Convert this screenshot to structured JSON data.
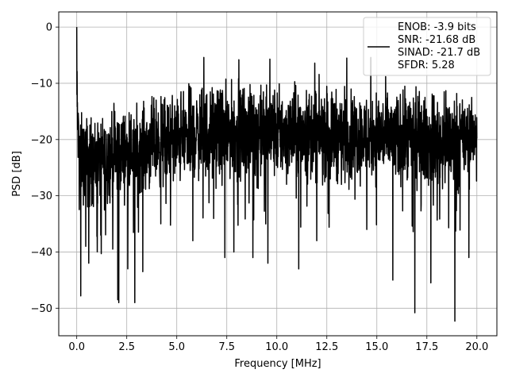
{
  "chart_data": {
    "type": "line",
    "xlabel": "Frequency [MHz]",
    "ylabel": "PSD [dB]",
    "xlim": [
      -0.9,
      21.0
    ],
    "ylim": [
      -54.9,
      2.7
    ],
    "xticks": [
      0.0,
      2.5,
      5.0,
      7.5,
      10.0,
      12.5,
      15.0,
      17.5,
      20.0
    ],
    "xtick_labels": [
      "0.0",
      "2.5",
      "5.0",
      "7.5",
      "10.0",
      "12.5",
      "15.0",
      "17.5",
      "20.0"
    ],
    "yticks": [
      0,
      -10,
      -20,
      -30,
      -40,
      -50
    ],
    "ytick_labels": [
      "0",
      "−10",
      "−20",
      "−30",
      "−40",
      "−50"
    ],
    "grid": true,
    "legend_position": "top-right",
    "series": [
      {
        "name": "ENOB: -3.9 bits\nSNR: -21.68 dB\nSINAD: -21.7 dB\nSFDR: 5.28",
        "color": "#000000",
        "x_range": [
          0.0,
          20.0
        ],
        "profile": {
          "x": [
            0.0,
            0.05,
            0.1,
            0.2,
            0.5,
            1.0,
            2.0,
            3.0,
            4.0,
            5.0,
            6.0,
            7.0,
            8.0,
            9.0,
            10.0,
            11.0,
            12.0,
            13.0,
            14.0,
            15.0,
            16.0,
            17.0,
            18.0,
            19.0,
            20.0
          ],
          "upper": [
            0.0,
            -9.5,
            -12.0,
            -13.0,
            -13.0,
            -13.5,
            -12.0,
            -12.0,
            -10.0,
            -9.0,
            -8.0,
            -8.0,
            -7.5,
            -7.5,
            -7.5,
            -8.0,
            -8.0,
            -8.5,
            -9.0,
            -8.5,
            -9.0,
            -9.0,
            -9.5,
            -9.5,
            -12.0
          ],
          "lower": [
            -22.0,
            -27.0,
            -30.0,
            -33.0,
            -35.0,
            -35.0,
            -33.0,
            -32.0,
            -31.0,
            -31.0,
            -30.0,
            -30.0,
            -30.0,
            -30.0,
            -30.0,
            -30.0,
            -30.0,
            -30.0,
            -30.0,
            -30.0,
            -31.0,
            -31.0,
            -31.0,
            -32.0,
            -25.0
          ]
        },
        "peaks": [
          {
            "x": 0.0,
            "y": 0.0
          },
          {
            "x": 6.35,
            "y": -5.4
          },
          {
            "x": 8.1,
            "y": -5.8
          },
          {
            "x": 9.65,
            "y": -5.7
          },
          {
            "x": 13.5,
            "y": -5.5
          },
          {
            "x": 14.7,
            "y": -5.4
          },
          {
            "x": 4.2,
            "y": -6.3
          },
          {
            "x": 11.9,
            "y": -6.4
          },
          {
            "x": 16.9,
            "y": -7.0
          }
        ],
        "dips": [
          {
            "x": 0.2,
            "y": -47.8
          },
          {
            "x": 0.45,
            "y": -39.0
          },
          {
            "x": 0.6,
            "y": -42.0
          },
          {
            "x": 1.2,
            "y": -37.0
          },
          {
            "x": 1.8,
            "y": -39.5
          },
          {
            "x": 2.05,
            "y": -48.5
          },
          {
            "x": 2.1,
            "y": -49.0
          },
          {
            "x": 2.55,
            "y": -43.0
          },
          {
            "x": 2.9,
            "y": -49.0
          },
          {
            "x": 3.3,
            "y": -43.5
          },
          {
            "x": 4.2,
            "y": -35.0
          },
          {
            "x": 5.8,
            "y": -38.0
          },
          {
            "x": 7.4,
            "y": -41.0
          },
          {
            "x": 7.85,
            "y": -40.0
          },
          {
            "x": 8.8,
            "y": -41.0
          },
          {
            "x": 9.55,
            "y": -42.0
          },
          {
            "x": 11.1,
            "y": -43.0
          },
          {
            "x": 12.0,
            "y": -38.0
          },
          {
            "x": 14.5,
            "y": -36.0
          },
          {
            "x": 15.8,
            "y": -45.0
          },
          {
            "x": 16.9,
            "y": -50.8
          },
          {
            "x": 17.7,
            "y": -45.5
          },
          {
            "x": 18.9,
            "y": -52.3
          },
          {
            "x": 19.6,
            "y": -41.0
          }
        ],
        "approx_points": 2400
      }
    ],
    "legend": {
      "lines": [
        "ENOB: -3.9 bits",
        "SNR: -21.68 dB",
        "SINAD: -21.7 dB",
        "SFDR: 5.28"
      ]
    }
  }
}
